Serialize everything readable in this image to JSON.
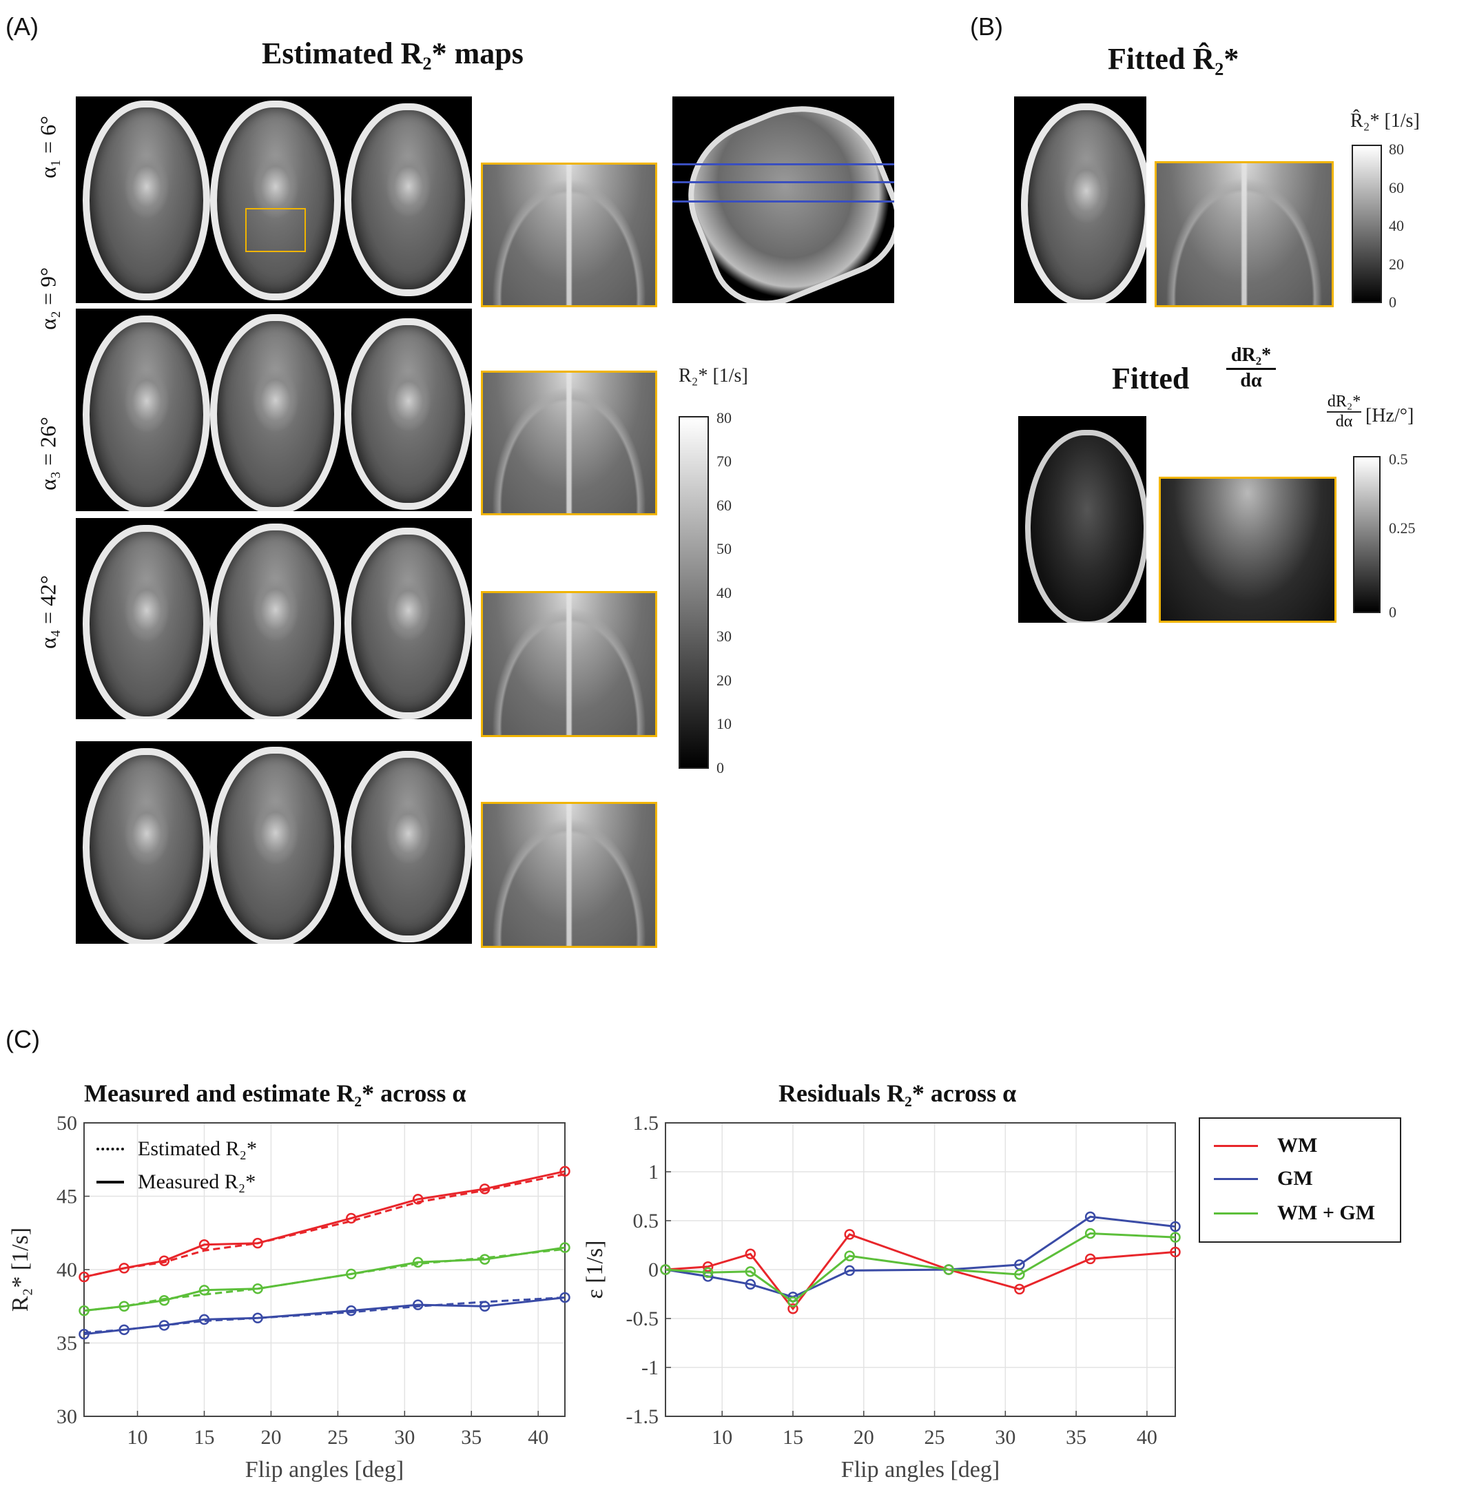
{
  "panelA": {
    "letter": "(A)",
    "title": "Estimated R₂* maps",
    "rows": [
      {
        "label": "α₁ = 6°"
      },
      {
        "label": "α₂ = 9°"
      },
      {
        "label": "α₃ = 26°"
      },
      {
        "label": "α₄ = 42°"
      }
    ],
    "colorbar": {
      "label": "R₂* [1/s]",
      "ticks": [
        "80",
        "70",
        "60",
        "50",
        "40",
        "30",
        "20",
        "10",
        "0"
      ]
    }
  },
  "panelB": {
    "letter": "(B)",
    "title1": "Fitted R̂₂*",
    "colorbar1": {
      "label": "R̂₂* [1/s]",
      "ticks": [
        "80",
        "60",
        "40",
        "20",
        "0"
      ]
    },
    "title2_prefix": "Fitted",
    "title2_num": "dR₂*",
    "title2_den": "dα",
    "colorbar2": {
      "label_num": "dR₂*",
      "label_den": "dα",
      "label_unit": "[Hz/°]",
      "ticks": [
        "0.5",
        "0.25",
        "0"
      ]
    }
  },
  "panelC": {
    "letter": "(C)"
  },
  "colors": {
    "WM": "#e8262b",
    "GM": "#3a4ba6",
    "WMGM": "#5cbf3a",
    "zoom_border": "#f0b400",
    "slice_lines": "#3a4fbf"
  },
  "chart_data": [
    {
      "type": "line",
      "title": "Measured and estimate R₂* across α",
      "xlabel": "Flip angles [deg]",
      "ylabel": "R₂* [1/s]",
      "xlim": [
        6,
        42
      ],
      "ylim": [
        30,
        50
      ],
      "xticks": [
        10,
        15,
        20,
        25,
        30,
        35,
        40
      ],
      "yticks": [
        30,
        35,
        40,
        45,
        50
      ],
      "legend": [
        "Estimated R₂*",
        "Measured R₂*"
      ],
      "grid": true,
      "x": [
        6,
        9,
        12,
        15,
        19,
        26,
        31,
        36,
        42
      ],
      "series": [
        {
          "color_key": "WM",
          "measured": [
            39.5,
            40.1,
            40.6,
            41.7,
            41.8,
            43.5,
            44.8,
            45.5,
            46.7
          ],
          "estimated": [
            39.5,
            40.1,
            40.5,
            41.3,
            41.8,
            43.3,
            44.6,
            45.4,
            46.5
          ]
        },
        {
          "color_key": "WMGM",
          "measured": [
            37.2,
            37.5,
            37.9,
            38.6,
            38.7,
            39.7,
            40.5,
            40.7,
            41.5
          ],
          "estimated": [
            37.2,
            37.5,
            38.0,
            38.3,
            38.7,
            39.7,
            40.4,
            40.8,
            41.4
          ]
        },
        {
          "color_key": "GM",
          "measured": [
            35.6,
            35.9,
            36.2,
            36.6,
            36.7,
            37.2,
            37.6,
            37.5,
            38.1
          ],
          "estimated": [
            35.7,
            35.9,
            36.2,
            36.5,
            36.7,
            37.1,
            37.5,
            37.8,
            38.1
          ]
        }
      ]
    },
    {
      "type": "line",
      "title": "Residuals R₂* across α",
      "xlabel": "Flip angles [deg]",
      "ylabel": "ε [1/s]",
      "xlim": [
        6,
        42
      ],
      "ylim": [
        -1.5,
        1.5
      ],
      "xticks": [
        10,
        15,
        20,
        25,
        30,
        35,
        40
      ],
      "yticks": [
        -1.5,
        -1,
        -0.5,
        0,
        0.5,
        1,
        1.5
      ],
      "ytick_labels": [
        "-1.5",
        "-1",
        "-0.5",
        "0",
        "0.5",
        "1",
        "1.5"
      ],
      "grid": true,
      "legend_position": "top-right (outside)",
      "x": [
        6,
        9,
        12,
        15,
        19,
        26,
        31,
        36,
        42
      ],
      "series": [
        {
          "name": "WM",
          "color_key": "WM",
          "values": [
            0.0,
            0.03,
            0.16,
            -0.4,
            0.36,
            0.0,
            -0.2,
            0.11,
            0.18
          ]
        },
        {
          "name": "GM",
          "color_key": "GM",
          "values": [
            0.0,
            -0.07,
            -0.15,
            -0.28,
            -0.01,
            0.0,
            0.05,
            0.54,
            0.44
          ]
        },
        {
          "name": "WM + GM",
          "color_key": "WMGM",
          "values": [
            0.0,
            -0.03,
            -0.02,
            -0.33,
            0.14,
            0.0,
            -0.05,
            0.37,
            0.33
          ]
        }
      ]
    }
  ]
}
